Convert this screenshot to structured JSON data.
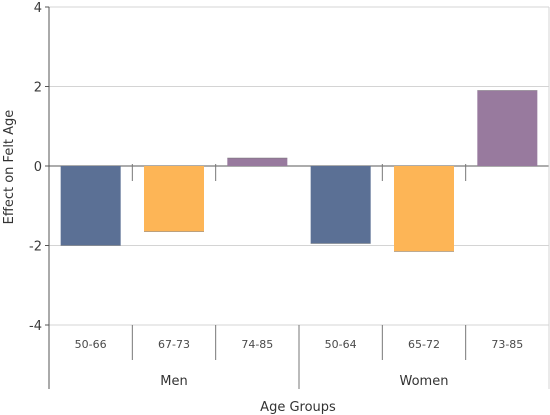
{
  "chart_data": {
    "type": "bar",
    "title": "",
    "xlabel": "Age Groups",
    "ylabel": "Effect on Felt Age",
    "ylim": [
      -4,
      4
    ],
    "yticks": [
      4,
      2,
      0,
      -2,
      -4
    ],
    "grid": true,
    "legend": "none",
    "groups": [
      {
        "name": "Men",
        "bars": [
          {
            "category": "50-66",
            "value": -2.0,
            "color": "#5b7095"
          },
          {
            "category": "67-73",
            "value": -1.65,
            "color": "#fdb556"
          },
          {
            "category": "74-85",
            "value": 0.2,
            "color": "#987a9e"
          }
        ]
      },
      {
        "name": "Women",
        "bars": [
          {
            "category": "50-64",
            "value": -1.95,
            "color": "#5b7095"
          },
          {
            "category": "65-72",
            "value": -2.15,
            "color": "#fdb556"
          },
          {
            "category": "73-85",
            "value": 1.9,
            "color": "#987a9e"
          }
        ]
      }
    ]
  }
}
